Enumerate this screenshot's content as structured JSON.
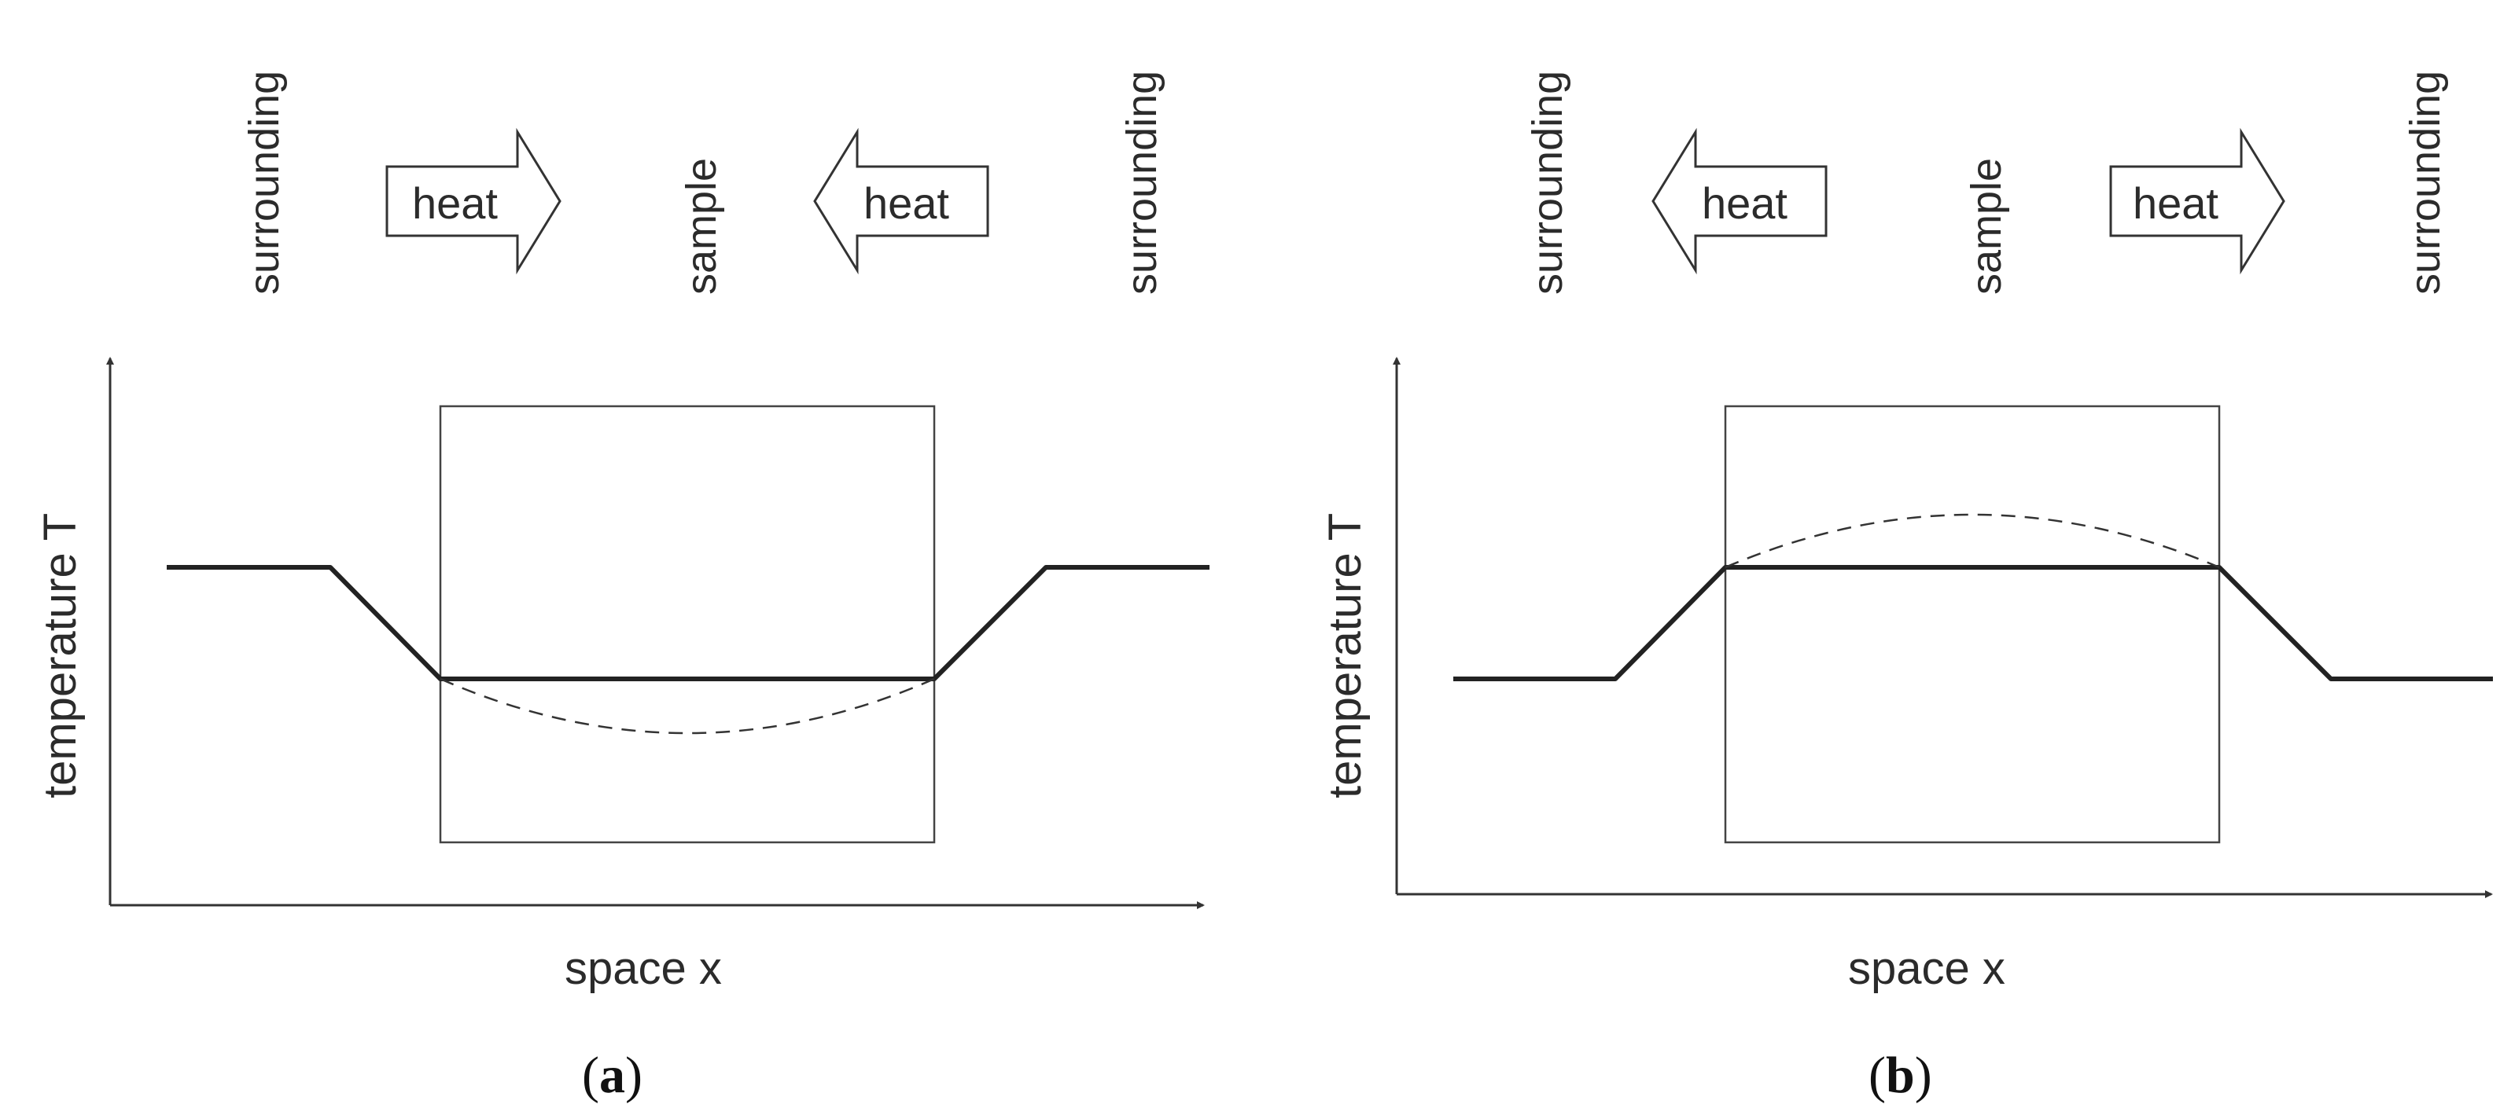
{
  "panels": [
    {
      "id": "a",
      "label": "a",
      "top_labels": {
        "left": "surrounding",
        "center": "sample",
        "right": "surrounding"
      },
      "arrows": [
        {
          "text": "heat",
          "direction": "right"
        },
        {
          "text": "heat",
          "direction": "left"
        }
      ],
      "y_axis_label": "temperature T",
      "x_axis_label": "space x",
      "profile": "surrounding hotter than sample; heat flows into sample; dashed curve dips below inside sample"
    },
    {
      "id": "b",
      "label": "b",
      "top_labels": {
        "left": "surrounding",
        "center": "sample",
        "right": "surrounding"
      },
      "arrows": [
        {
          "text": "heat",
          "direction": "left"
        },
        {
          "text": "heat",
          "direction": "right"
        }
      ],
      "y_axis_label": "temperature T",
      "x_axis_label": "space x",
      "profile": "sample hotter than surrounding; heat flows out of sample; dashed curve bulges above inside sample"
    }
  ]
}
